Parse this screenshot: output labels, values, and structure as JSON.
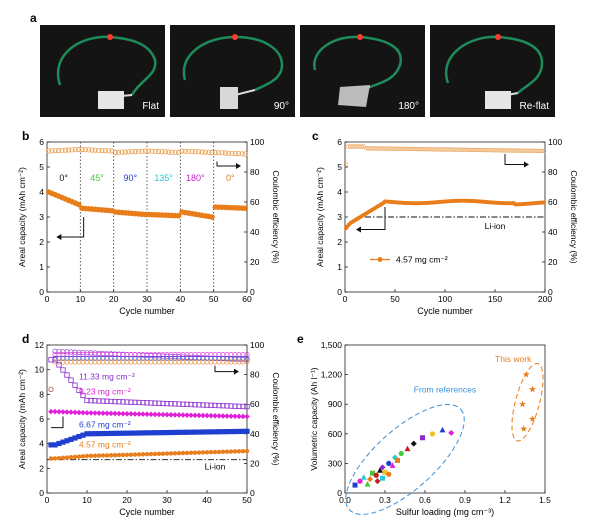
{
  "figure": {
    "panels": {
      "a": "a",
      "b": "b",
      "c": "c",
      "d": "d",
      "e": "e"
    },
    "photos": [
      {
        "label": "Flat"
      },
      {
        "label": "90°"
      },
      {
        "label": "180°"
      },
      {
        "label": "Re-flat"
      }
    ]
  },
  "chart_data": [
    {
      "panel": "b",
      "type": "scatter",
      "xlabel": "Cycle number",
      "ylabel": "Areal capacity (mAh cm⁻²)",
      "y2label": "Coulombic efficiency (%)",
      "xlim": [
        0,
        60
      ],
      "ylim": [
        0,
        6
      ],
      "y2lim": [
        0,
        100
      ],
      "xticks": [
        "0",
        "10",
        "20",
        "30",
        "40",
        "50",
        "60"
      ],
      "yticks": [
        "0",
        "1",
        "2",
        "3",
        "4",
        "5",
        "6"
      ],
      "y2ticks": [
        "0",
        "20",
        "40",
        "60",
        "80",
        "100"
      ],
      "angle_labels": [
        {
          "text": "0°",
          "color": "#111111",
          "x": 5
        },
        {
          "text": "45°",
          "color": "#46c83a",
          "x": 15
        },
        {
          "text": "90°",
          "color": "#1f3fd0",
          "x": 25
        },
        {
          "text": "135°",
          "color": "#28c8d8",
          "x": 35
        },
        {
          "text": "180°",
          "color": "#c020c8",
          "x": 44.5
        },
        {
          "text": "0°",
          "color": "#e07a10",
          "x": 55
        }
      ],
      "dividers_x": [
        10,
        20,
        30,
        40,
        50
      ],
      "series": [
        {
          "axis": "left",
          "color": "#e87d1a",
          "filled": true,
          "segments": [
            [
              0,
              4.0,
              3.5
            ],
            [
              10,
              3.35,
              3.25
            ],
            [
              20,
              3.2,
              3.1
            ],
            [
              30,
              3.1,
              3.05
            ],
            [
              40,
              3.2,
              3.0
            ],
            [
              50,
              3.4,
              3.35
            ]
          ]
        },
        {
          "axis": "right",
          "color": "#e8a050",
          "filled": false,
          "segments": [
            [
              0,
              94,
              95
            ],
            [
              10,
              95,
              94
            ],
            [
              20,
              93,
              94
            ],
            [
              30,
              94,
              93
            ],
            [
              40,
              94,
              93
            ],
            [
              50,
              93,
              92
            ]
          ]
        }
      ]
    },
    {
      "panel": "c",
      "type": "scatter",
      "xlabel": "Cycle number",
      "ylabel": "Areal capacity (mAh cm⁻²)",
      "y2label": "Coulombic efficiency (%)",
      "xlim": [
        0,
        200
      ],
      "ylim": [
        0,
        6
      ],
      "y2lim": [
        0,
        100
      ],
      "xticks": [
        "0",
        "50",
        "100",
        "150",
        "200"
      ],
      "yticks": [
        "0",
        "1",
        "2",
        "3",
        "4",
        "5",
        "6"
      ],
      "y2ticks": [
        "0",
        "20",
        "40",
        "60",
        "80",
        "100"
      ],
      "reference_line": {
        "y": 3.0,
        "label": "Li-ion"
      },
      "legend": "4.57 mg cm⁻²",
      "series": [
        {
          "axis": "left",
          "color": "#e87d1a",
          "points": "capacity"
        },
        {
          "axis": "right",
          "color": "#e8a050",
          "points": "ce"
        }
      ]
    },
    {
      "panel": "d",
      "type": "scatter",
      "xlabel": "Cycle number",
      "ylabel": "Areal capacity (mAh cm⁻²)",
      "y2label": "Coulombic efficiency (%)",
      "xlim": [
        0,
        50
      ],
      "ylim": [
        0,
        12
      ],
      "y2lim": [
        0,
        100
      ],
      "xticks": [
        "0",
        "10",
        "20",
        "30",
        "40",
        "50"
      ],
      "yticks": [
        "0",
        "2",
        "4",
        "6",
        "8",
        "10",
        "12"
      ],
      "y2ticks": [
        "0",
        "20",
        "40",
        "60",
        "80",
        "100"
      ],
      "reference_line": {
        "y": 2.7,
        "label": "Li-ion"
      },
      "series": [
        {
          "name": "11.33 mg cm⁻²",
          "color": "#8a2bd0",
          "cap_start": 10.8,
          "cap_peak": 7.5,
          "cap_end": 7.0
        },
        {
          "name": "9.23 mg cm⁻²",
          "color": "#e020d8",
          "cap_start": 6.6,
          "cap_peak": 6.5,
          "cap_end": 6.2
        },
        {
          "name": "6.67 mg cm⁻²",
          "color": "#1f3fd0",
          "cap_start": 3.9,
          "cap_peak": 4.8,
          "cap_end": 5.0
        },
        {
          "name": "4.57 mg cm⁻²",
          "color": "#e87d1a",
          "cap_start": 2.8,
          "cap_peak": 3.0,
          "cap_end": 3.4
        }
      ]
    },
    {
      "panel": "e",
      "type": "scatter",
      "xlabel": "Sulfur loading (mg cm⁻³)",
      "ylabel": "Volumetric capacity (Ah l⁻¹)",
      "xlim": [
        0,
        1.6
      ],
      "ylim": [
        0,
        1500
      ],
      "xticks": [
        "0.0",
        "0.3",
        "0.6",
        "0.9",
        "1.2",
        "1.5"
      ],
      "yticks": [
        "0",
        "300",
        "600",
        "900",
        "1,200",
        "1,500"
      ],
      "annotations": [
        "From references",
        "This work"
      ],
      "this_work": [
        [
          1.45,
          1200
        ],
        [
          1.5,
          1050
        ],
        [
          1.42,
          900
        ],
        [
          1.5,
          750
        ],
        [
          1.43,
          650
        ]
      ],
      "references": [
        [
          0.08,
          80
        ],
        [
          0.12,
          120
        ],
        [
          0.15,
          160
        ],
        [
          0.2,
          140
        ],
        [
          0.22,
          200
        ],
        [
          0.25,
          180
        ],
        [
          0.28,
          230
        ],
        [
          0.3,
          260
        ],
        [
          0.32,
          210
        ],
        [
          0.35,
          300
        ],
        [
          0.38,
          280
        ],
        [
          0.4,
          360
        ],
        [
          0.42,
          330
        ],
        [
          0.45,
          400
        ],
        [
          0.5,
          450
        ],
        [
          0.55,
          500
        ],
        [
          0.62,
          560
        ],
        [
          0.7,
          600
        ],
        [
          0.78,
          640
        ],
        [
          0.85,
          610
        ],
        [
          0.3,
          150
        ],
        [
          0.35,
          190
        ],
        [
          0.18,
          90
        ],
        [
          0.26,
          120
        ]
      ]
    }
  ]
}
